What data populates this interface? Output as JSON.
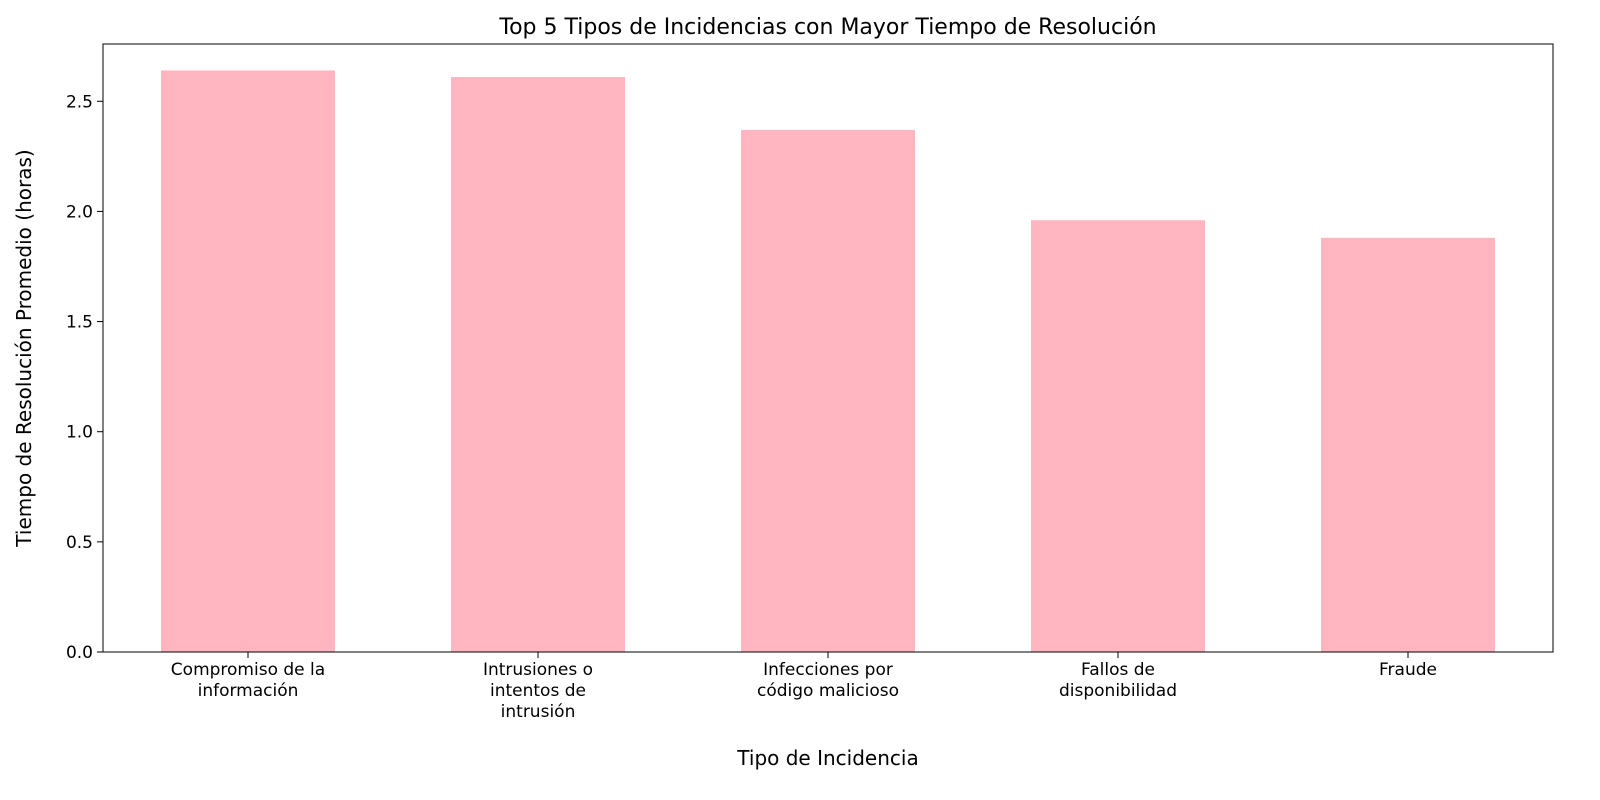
{
  "chart_data": {
    "type": "bar",
    "title": "Top 5 Tipos de Incidencias con Mayor Tiempo de Resolución",
    "xlabel": "Tipo de Incidencia",
    "ylabel": "Tiempo de Resolución Promedio (horas)",
    "categories": [
      [
        "Compromiso de la",
        "información"
      ],
      [
        "Intrusiones o",
        "intentos de",
        "intrusión"
      ],
      [
        "Infecciones por",
        "código malicioso"
      ],
      [
        "Fallos de",
        "disponibilidad"
      ],
      [
        "Fraude"
      ]
    ],
    "values": [
      2.64,
      2.61,
      2.37,
      1.96,
      1.88
    ],
    "ylim": [
      0,
      2.76
    ],
    "yticks": [
      0.0,
      0.5,
      1.0,
      1.5,
      2.0,
      2.5
    ],
    "ytick_labels": [
      "0.0",
      "0.5",
      "1.0",
      "1.5",
      "2.0",
      "2.5"
    ],
    "bar_color": "#ffb6c1",
    "grid": false,
    "legend": "none"
  }
}
